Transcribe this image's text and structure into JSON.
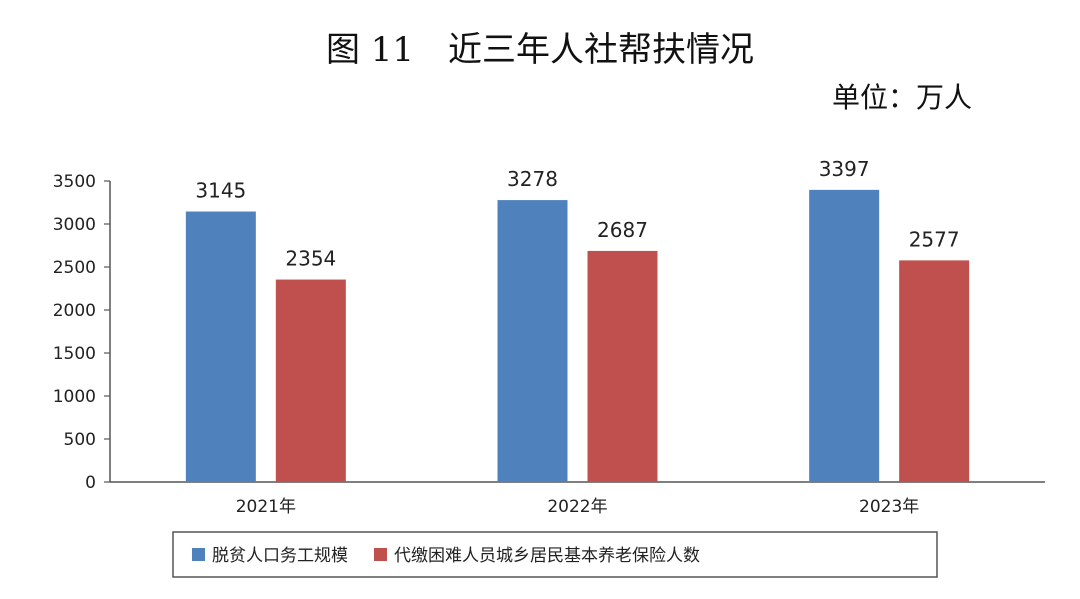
{
  "title": "图 11　近三年人社帮扶情况",
  "unit_label": "单位：万人",
  "chart_data": {
    "type": "bar",
    "title": "图 11　近三年人社帮扶情况",
    "xlabel": "",
    "ylabel": "",
    "ylim": [
      0,
      3500
    ],
    "yticks": [
      0,
      500,
      1000,
      1500,
      2000,
      2500,
      3000,
      3500
    ],
    "categories": [
      "2021年",
      "2022年",
      "2023年"
    ],
    "series": [
      {
        "name": "脱贫人口务工规模",
        "color": "#4f81bd",
        "values": [
          3145,
          3278,
          3397
        ]
      },
      {
        "name": "代缴困难人员城乡居民基本养老保险人数",
        "color": "#c0504d",
        "values": [
          2354,
          2687,
          2577
        ]
      }
    ],
    "grid": false,
    "legend_position": "bottom"
  }
}
